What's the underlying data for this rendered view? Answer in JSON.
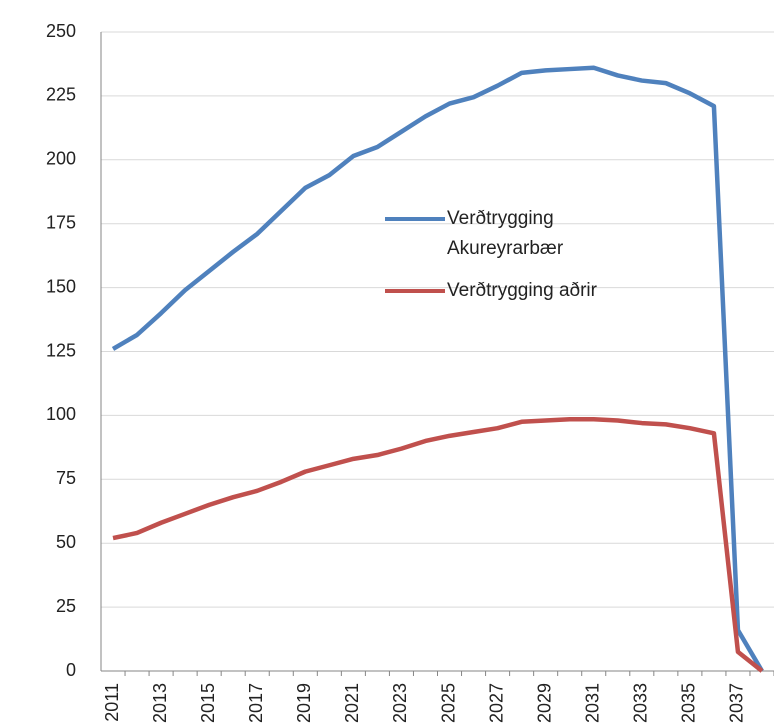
{
  "chart_data": {
    "type": "line",
    "categories": [
      "2011",
      null,
      "2013",
      null,
      "2015",
      null,
      "2017",
      null,
      "2019",
      null,
      "2021",
      null,
      "2023",
      null,
      "2025",
      null,
      "2027",
      null,
      "2029",
      null,
      "2031",
      null,
      "2033",
      null,
      "2035",
      null,
      "2037",
      null
    ],
    "series": [
      {
        "name": "Verðtrygging Akureyrarbær",
        "color": "#4f81bd",
        "values": [
          126,
          131.5,
          140,
          149,
          156.5,
          164,
          171,
          180,
          189,
          194,
          201.5,
          205,
          211,
          217,
          222,
          224.5,
          229,
          234,
          235,
          235.5,
          236,
          233,
          231,
          230,
          226,
          221,
          16,
          0
        ]
      },
      {
        "name": "Verðtrygging aðrir",
        "color": "#c0504d",
        "values": [
          52,
          54,
          58,
          61.5,
          65,
          68,
          70.5,
          74,
          78,
          80.5,
          83,
          84.5,
          87,
          90,
          92,
          93.5,
          95,
          97.5,
          98,
          98.5,
          98.5,
          98,
          97,
          96.5,
          95,
          93,
          7.5,
          0
        ]
      }
    ],
    "ylim": [
      0,
      250
    ],
    "yticks": [
      0,
      25,
      50,
      75,
      100,
      125,
      150,
      175,
      200,
      225,
      250
    ],
    "grid": true
  }
}
